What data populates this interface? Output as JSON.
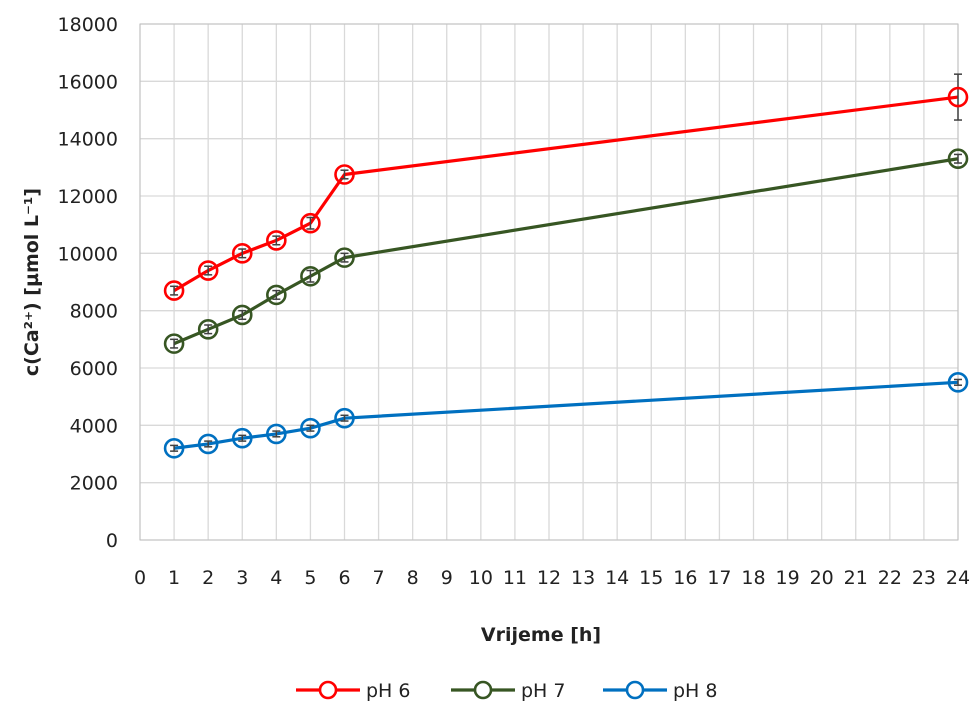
{
  "chart_data": {
    "type": "line",
    "title": "",
    "xlabel": "Vrijeme [h]",
    "ylabel": "c(Ca²⁺) [µmol L⁻¹]",
    "xlim": [
      0,
      24
    ],
    "ylim": [
      0,
      18000
    ],
    "xticks": [
      "0",
      "1",
      "2",
      "3",
      "4",
      "5",
      "6",
      "7",
      "8",
      "9",
      "10",
      "11",
      "12",
      "13",
      "14",
      "15",
      "16",
      "17",
      "18",
      "19",
      "20",
      "21",
      "22",
      "23",
      "24"
    ],
    "yticks": [
      "0",
      "2000",
      "4000",
      "6000",
      "8000",
      "10000",
      "12000",
      "14000",
      "16000",
      "18000"
    ],
    "grid": true,
    "legend_position": "bottom",
    "x": [
      1,
      2,
      3,
      4,
      5,
      6,
      24
    ],
    "series": [
      {
        "name": "pH 6",
        "color": "#ff0000",
        "values": [
          8700,
          9400,
          10000,
          10450,
          11050,
          12750,
          15450
        ],
        "errors": [
          150,
          150,
          150,
          150,
          200,
          150,
          800
        ]
      },
      {
        "name": "pH 7",
        "color": "#375623",
        "values": [
          6850,
          7350,
          7850,
          8550,
          9200,
          9850,
          13300
        ],
        "errors": [
          150,
          150,
          150,
          150,
          200,
          150,
          150
        ]
      },
      {
        "name": "pH 8",
        "color": "#0070c0",
        "values": [
          3200,
          3350,
          3550,
          3700,
          3900,
          4250,
          5500
        ],
        "errors": [
          100,
          100,
          100,
          100,
          100,
          100,
          100
        ]
      }
    ]
  }
}
